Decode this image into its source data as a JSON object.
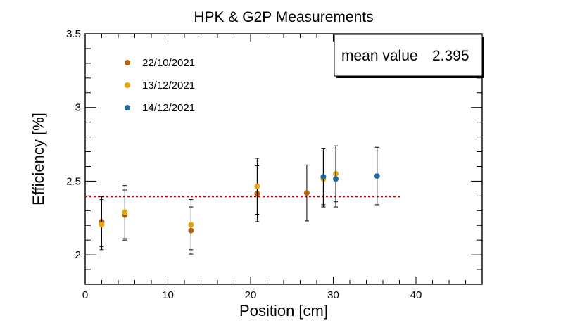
{
  "chart_data": {
    "type": "scatter",
    "title": "HPK & G2P Measurements",
    "xlabel": "Position [cm]",
    "ylabel": "Efficiency [%]",
    "xlim": [
      0,
      48
    ],
    "ylim": [
      1.8,
      3.5
    ],
    "x_ticks": [
      0,
      10,
      20,
      30,
      40
    ],
    "y_ticks": [
      2,
      2.5,
      3,
      3.5
    ],
    "x_tick_labels": [
      "0",
      "10",
      "20",
      "30",
      "40"
    ],
    "y_tick_labels": [
      "2",
      "2.5",
      "3",
      "3.5"
    ],
    "grid": false,
    "legend_position": "top-left",
    "series": [
      {
        "name": "22/10/2021",
        "color": "#b8620f",
        "points": [
          {
            "x": 2,
            "y": 2.225,
            "err": 0.17
          },
          {
            "x": 4.8,
            "y": 2.27,
            "err": 0.17
          },
          {
            "x": 12.8,
            "y": 2.165,
            "err": 0.16
          },
          {
            "x": 20.8,
            "y": 2.415,
            "err": 0.19
          },
          {
            "x": 26.8,
            "y": 2.42,
            "err": 0.19
          }
        ]
      },
      {
        "name": "13/12/2021",
        "color": "#e8a40c",
        "points": [
          {
            "x": 2,
            "y": 2.205,
            "err": 0.17
          },
          {
            "x": 4.8,
            "y": 2.29,
            "err": 0.18
          },
          {
            "x": 12.8,
            "y": 2.205,
            "err": 0.17
          },
          {
            "x": 20.8,
            "y": 2.465,
            "err": 0.19
          },
          {
            "x": 28.8,
            "y": 2.515,
            "err": 0.19
          },
          {
            "x": 30.3,
            "y": 2.55,
            "err": 0.19
          }
        ]
      },
      {
        "name": "14/12/2021",
        "color": "#1e6b9e",
        "points": [
          {
            "x": 28.8,
            "y": 2.53,
            "err": 0.19
          },
          {
            "x": 30.3,
            "y": 2.515,
            "err": 0.19
          },
          {
            "x": 35.3,
            "y": 2.535,
            "err": 0.195
          }
        ]
      }
    ],
    "mean_line": {
      "y": 2.395,
      "x_start": 0,
      "x_end": 38.3,
      "color": "#e00000"
    },
    "annotation": {
      "label": "mean value",
      "value": "2.395"
    }
  }
}
